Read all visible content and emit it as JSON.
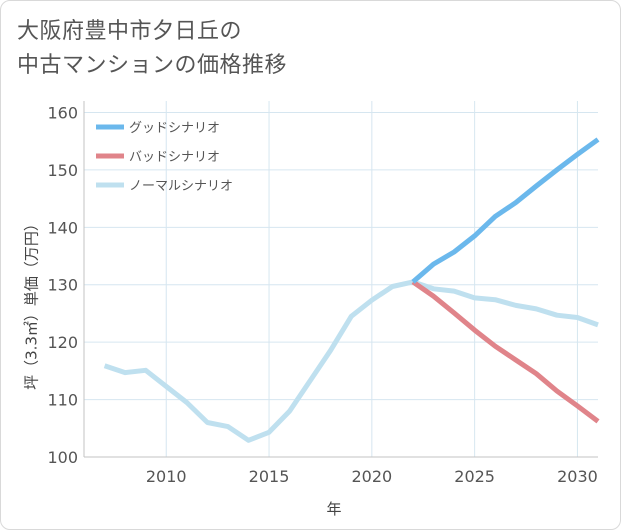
{
  "title_lines": [
    "大阪府豊中市夕日丘の",
    "中古マンションの価格推移"
  ],
  "chart_data": {
    "type": "line",
    "xlabel": "年",
    "ylabel": "坪（3.3㎡）単価（万円）",
    "xlim": [
      2006,
      2031
    ],
    "ylim": [
      100,
      162
    ],
    "xticks": [
      2010,
      2015,
      2020,
      2025,
      2030
    ],
    "yticks": [
      100,
      110,
      120,
      130,
      140,
      150,
      160
    ],
    "legend_position": "top-left",
    "series": [
      {
        "name": "グッドシナリオ",
        "color": "#6bb8ec",
        "x": [
          2022,
          2023,
          2024,
          2025,
          2026,
          2027,
          2028,
          2029,
          2030,
          2031
        ],
        "values": [
          130.5,
          133.6,
          135.7,
          138.5,
          141.9,
          144.3,
          147.2,
          150.0,
          152.7,
          155.3
        ]
      },
      {
        "name": "バッドシナリオ",
        "color": "#e0848a",
        "x": [
          2022,
          2023,
          2024,
          2025,
          2026,
          2027,
          2028,
          2029,
          2030,
          2031
        ],
        "values": [
          130.5,
          128.0,
          125.1,
          122.1,
          119.3,
          116.9,
          114.5,
          111.5,
          108.9,
          106.2
        ]
      },
      {
        "name": "ノーマルシナリオ",
        "color": "#bfe0ef",
        "x": [
          2007,
          2008,
          2009,
          2010,
          2011,
          2012,
          2013,
          2014,
          2015,
          2016,
          2017,
          2018,
          2019,
          2020,
          2021,
          2022,
          2023,
          2024,
          2025,
          2026,
          2027,
          2028,
          2029,
          2030,
          2031
        ],
        "values": [
          115.9,
          114.7,
          115.1,
          112.3,
          109.5,
          106.0,
          105.3,
          102.9,
          104.3,
          108.0,
          113.3,
          118.6,
          124.5,
          127.3,
          129.7,
          130.5,
          129.3,
          128.9,
          127.7,
          127.4,
          126.4,
          125.8,
          124.7,
          124.3,
          123.0
        ]
      }
    ]
  }
}
